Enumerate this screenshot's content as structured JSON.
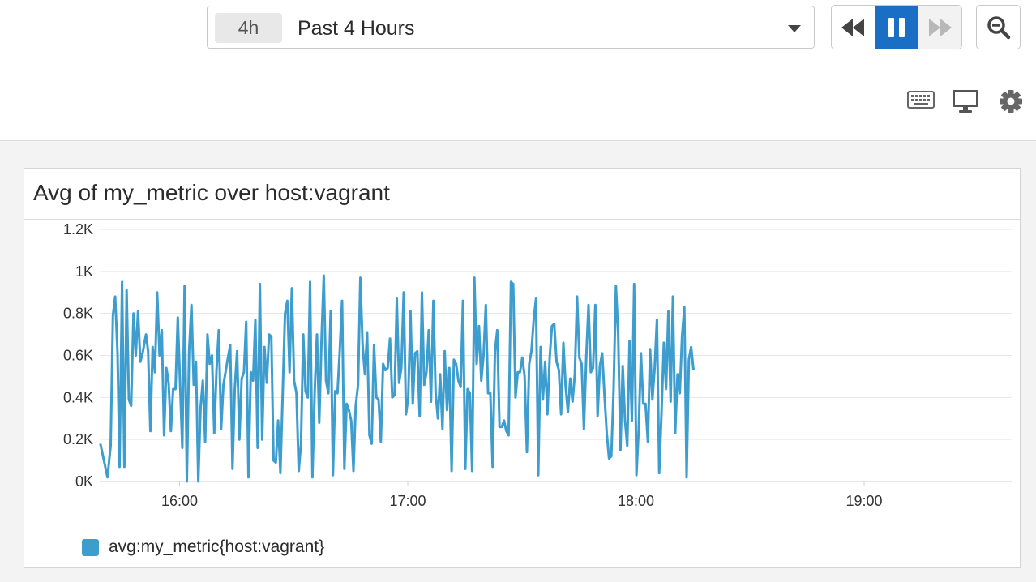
{
  "time_selector": {
    "pill": "4h",
    "label": "Past 4 Hours"
  },
  "playback": {
    "state": "paused"
  },
  "toolbar_icons": [
    "keyboard-icon",
    "monitor-icon",
    "gear-icon"
  ],
  "widget": {
    "title": "Avg of my_metric over host:vagrant",
    "legend_label": "avg:my_metric{host:vagrant}",
    "series_color": "#3d9dce"
  },
  "chart_data": {
    "type": "line",
    "y_ticks": [
      "0K",
      "0.2K",
      "0.4K",
      "0.6K",
      "0.8K",
      "1K",
      "1.2K"
    ],
    "ylim": [
      0,
      1200
    ],
    "x_ticks": [
      "16:00",
      "17:00",
      "18:00",
      "19:00"
    ],
    "x_tick_hours": [
      16,
      17,
      18,
      19
    ],
    "x_range_hours": [
      15.65,
      19.65
    ],
    "grid": true,
    "legend_position": "bottom-left",
    "series": [
      {
        "name": "avg:my_metric{host:vagrant}",
        "color": "#3d9dce",
        "points": [
          [
            15.653,
            180
          ],
          [
            15.684,
            20
          ],
          [
            15.698,
            170
          ],
          [
            15.708,
            790
          ],
          [
            15.718,
            880
          ],
          [
            15.728,
            610
          ],
          [
            15.737,
            70
          ],
          [
            15.748,
            950
          ],
          [
            15.758,
            70
          ],
          [
            15.768,
            910
          ],
          [
            15.778,
            390
          ],
          [
            15.788,
            360
          ],
          [
            15.798,
            800
          ],
          [
            15.808,
            600
          ],
          [
            15.818,
            810
          ],
          [
            15.828,
            570
          ],
          [
            15.838,
            610
          ],
          [
            15.853,
            700
          ],
          [
            15.862,
            620
          ],
          [
            15.872,
            240
          ],
          [
            15.882,
            640
          ],
          [
            15.892,
            520
          ],
          [
            15.902,
            900
          ],
          [
            15.912,
            600
          ],
          [
            15.922,
            720
          ],
          [
            15.932,
            220
          ],
          [
            15.942,
            540
          ],
          [
            15.952,
            470
          ],
          [
            15.962,
            240
          ],
          [
            15.972,
            440
          ],
          [
            15.982,
            440
          ],
          [
            15.992,
            780
          ],
          [
            16.012,
            160
          ],
          [
            16.022,
            930
          ],
          [
            16.032,
            0
          ],
          [
            16.042,
            620
          ],
          [
            16.052,
            840
          ],
          [
            16.062,
            460
          ],
          [
            16.072,
            570
          ],
          [
            16.082,
            0
          ],
          [
            16.092,
            350
          ],
          [
            16.102,
            480
          ],
          [
            16.112,
            190
          ],
          [
            16.122,
            700
          ],
          [
            16.132,
            560
          ],
          [
            16.142,
            600
          ],
          [
            16.152,
            230
          ],
          [
            16.162,
            530
          ],
          [
            16.172,
            720
          ],
          [
            16.182,
            250
          ],
          [
            16.192,
            460
          ],
          [
            16.212,
            590
          ],
          [
            16.222,
            650
          ],
          [
            16.232,
            60
          ],
          [
            16.242,
            440
          ],
          [
            16.252,
            620
          ],
          [
            16.262,
            200
          ],
          [
            16.272,
            490
          ],
          [
            16.282,
            520
          ],
          [
            16.292,
            760
          ],
          [
            16.302,
            20
          ],
          [
            16.312,
            520
          ],
          [
            16.322,
            480
          ],
          [
            16.332,
            770
          ],
          [
            16.342,
            160
          ],
          [
            16.352,
            940
          ],
          [
            16.362,
            200
          ],
          [
            16.372,
            640
          ],
          [
            16.382,
            470
          ],
          [
            16.392,
            700
          ],
          [
            16.402,
            690
          ],
          [
            16.412,
            100
          ],
          [
            16.422,
            90
          ],
          [
            16.432,
            290
          ],
          [
            16.442,
            40
          ],
          [
            16.462,
            800
          ],
          [
            16.472,
            860
          ],
          [
            16.482,
            520
          ],
          [
            16.492,
            920
          ],
          [
            16.502,
            480
          ],
          [
            16.512,
            420
          ],
          [
            16.522,
            50
          ],
          [
            16.532,
            180
          ],
          [
            16.542,
            700
          ],
          [
            16.552,
            430
          ],
          [
            16.562,
            400
          ],
          [
            16.572,
            950
          ],
          [
            16.582,
            20
          ],
          [
            16.592,
            430
          ],
          [
            16.602,
            700
          ],
          [
            16.612,
            280
          ],
          [
            16.622,
            670
          ],
          [
            16.632,
            980
          ],
          [
            16.642,
            480
          ],
          [
            16.652,
            420
          ],
          [
            16.662,
            810
          ],
          [
            16.672,
            30
          ],
          [
            16.682,
            430
          ],
          [
            16.692,
            420
          ],
          [
            16.702,
            620
          ],
          [
            16.712,
            860
          ],
          [
            16.722,
            60
          ],
          [
            16.732,
            370
          ],
          [
            16.742,
            340
          ],
          [
            16.752,
            290
          ],
          [
            16.762,
            50
          ],
          [
            16.772,
            360
          ],
          [
            16.782,
            460
          ],
          [
            16.792,
            970
          ],
          [
            16.802,
            650
          ],
          [
            16.812,
            510
          ],
          [
            16.822,
            710
          ],
          [
            16.832,
            220
          ],
          [
            16.842,
            180
          ],
          [
            16.852,
            650
          ],
          [
            16.862,
            400
          ],
          [
            16.872,
            390
          ],
          [
            16.882,
            190
          ],
          [
            16.892,
            560
          ],
          [
            16.902,
            530
          ],
          [
            16.912,
            540
          ],
          [
            16.922,
            680
          ],
          [
            16.932,
            400
          ],
          [
            16.942,
            410
          ],
          [
            16.952,
            870
          ],
          [
            16.962,
            470
          ],
          [
            16.972,
            540
          ],
          [
            16.982,
            900
          ],
          [
            16.992,
            320
          ],
          [
            17.002,
            400
          ],
          [
            17.012,
            810
          ],
          [
            17.022,
            370
          ],
          [
            17.032,
            610
          ],
          [
            17.042,
            620
          ],
          [
            17.052,
            310
          ],
          [
            17.062,
            900
          ],
          [
            17.072,
            460
          ],
          [
            17.082,
            520
          ],
          [
            17.092,
            720
          ],
          [
            17.102,
            380
          ],
          [
            17.112,
            860
          ],
          [
            17.122,
            420
          ],
          [
            17.132,
            300
          ],
          [
            17.142,
            510
          ],
          [
            17.152,
            250
          ],
          [
            17.162,
            620
          ],
          [
            17.172,
            340
          ],
          [
            17.182,
            540
          ],
          [
            17.192,
            50
          ],
          [
            17.202,
            580
          ],
          [
            17.212,
            560
          ],
          [
            17.222,
            480
          ],
          [
            17.232,
            450
          ],
          [
            17.242,
            860
          ],
          [
            17.252,
            60
          ],
          [
            17.262,
            440
          ],
          [
            17.272,
            420
          ],
          [
            17.282,
            50
          ],
          [
            17.292,
            970
          ],
          [
            17.302,
            560
          ],
          [
            17.312,
            740
          ],
          [
            17.322,
            480
          ],
          [
            17.332,
            600
          ],
          [
            17.342,
            840
          ],
          [
            17.352,
            420
          ],
          [
            17.362,
            420
          ],
          [
            17.372,
            70
          ],
          [
            17.382,
            620
          ],
          [
            17.392,
            720
          ],
          [
            17.402,
            260
          ],
          [
            17.412,
            260
          ],
          [
            17.422,
            290
          ],
          [
            17.432,
            240
          ],
          [
            17.442,
            220
          ],
          [
            17.452,
            950
          ],
          [
            17.462,
            940
          ],
          [
            17.472,
            400
          ],
          [
            17.482,
            520
          ],
          [
            17.492,
            520
          ],
          [
            17.502,
            590
          ],
          [
            17.512,
            500
          ],
          [
            17.522,
            140
          ],
          [
            17.532,
            560
          ],
          [
            17.542,
            620
          ],
          [
            17.552,
            770
          ],
          [
            17.562,
            870
          ],
          [
            17.572,
            30
          ],
          [
            17.582,
            640
          ],
          [
            17.592,
            390
          ],
          [
            17.602,
            570
          ],
          [
            17.612,
            320
          ],
          [
            17.622,
            590
          ],
          [
            17.632,
            740
          ],
          [
            17.642,
            750
          ],
          [
            17.652,
            570
          ],
          [
            17.662,
            530
          ],
          [
            17.672,
            320
          ],
          [
            17.682,
            660
          ],
          [
            17.692,
            450
          ],
          [
            17.702,
            330
          ],
          [
            17.712,
            490
          ],
          [
            17.722,
            380
          ],
          [
            17.732,
            510
          ],
          [
            17.742,
            880
          ],
          [
            17.752,
            590
          ],
          [
            17.762,
            560
          ],
          [
            17.772,
            250
          ],
          [
            17.782,
            590
          ],
          [
            17.792,
            840
          ],
          [
            17.802,
            520
          ],
          [
            17.812,
            540
          ],
          [
            17.822,
            840
          ],
          [
            17.832,
            310
          ],
          [
            17.842,
            550
          ],
          [
            17.852,
            610
          ],
          [
            17.862,
            410
          ],
          [
            17.872,
            230
          ],
          [
            17.882,
            110
          ],
          [
            17.892,
            120
          ],
          [
            17.902,
            430
          ],
          [
            17.912,
            930
          ],
          [
            17.922,
            700
          ],
          [
            17.932,
            150
          ],
          [
            17.942,
            550
          ],
          [
            17.952,
            290
          ],
          [
            17.962,
            170
          ],
          [
            17.972,
            670
          ],
          [
            17.982,
            290
          ],
          [
            17.992,
            940
          ],
          [
            18.002,
            30
          ],
          [
            18.012,
            250
          ],
          [
            18.022,
            610
          ],
          [
            18.032,
            370
          ],
          [
            18.042,
            370
          ],
          [
            18.052,
            190
          ],
          [
            18.062,
            630
          ],
          [
            18.072,
            390
          ],
          [
            18.082,
            540
          ],
          [
            18.092,
            770
          ],
          [
            18.102,
            40
          ],
          [
            18.112,
            330
          ],
          [
            18.122,
            660
          ],
          [
            18.132,
            440
          ],
          [
            18.142,
            810
          ],
          [
            18.152,
            380
          ],
          [
            18.162,
            880
          ],
          [
            18.172,
            230
          ],
          [
            18.182,
            510
          ],
          [
            18.192,
            420
          ],
          [
            18.202,
            690
          ],
          [
            18.212,
            830
          ],
          [
            18.222,
            20
          ],
          [
            18.232,
            580
          ],
          [
            18.242,
            640
          ],
          [
            18.252,
            530
          ]
        ]
      }
    ]
  }
}
